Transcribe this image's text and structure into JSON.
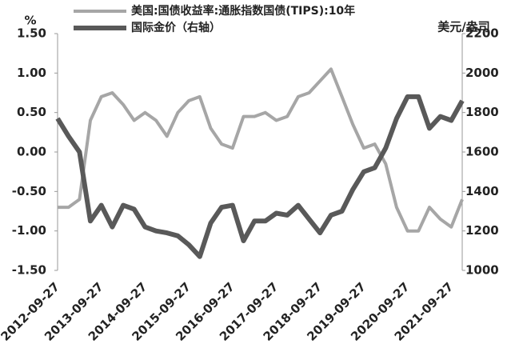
{
  "chart_data": {
    "type": "line",
    "y_unit": "%",
    "y2_unit": "美元/盎司",
    "categories": [
      "2012-09-27",
      null,
      null,
      null,
      "2013-09-27",
      null,
      null,
      null,
      "2014-09-27",
      null,
      null,
      null,
      "2015-09-27",
      null,
      null,
      null,
      "2016-09-27",
      null,
      null,
      null,
      "2017-09-27",
      null,
      null,
      null,
      "2018-09-27",
      null,
      null,
      null,
      "2019-09-27",
      null,
      null,
      null,
      "2020-09-27",
      null,
      null,
      null,
      "2021-09-27",
      null
    ],
    "series": [
      {
        "name": "美国:国债收益率:通胀指数国债(TIPS):10年",
        "color": "#a6a6a6",
        "values": [
          -0.7,
          -0.7,
          -0.6,
          0.4,
          0.7,
          0.75,
          0.6,
          0.4,
          0.5,
          0.4,
          0.2,
          0.5,
          0.65,
          0.7,
          0.3,
          0.1,
          0.05,
          0.45,
          0.45,
          0.5,
          0.4,
          0.45,
          0.7,
          0.75,
          0.9,
          1.05,
          0.7,
          0.35,
          0.05,
          0.1,
          -0.15,
          -0.7,
          -1.0,
          -1.0,
          -0.7,
          -0.85,
          -0.95,
          -0.6
        ]
      },
      {
        "name": "国际金价（右轴）",
        "color": "#595959",
        "axis": "y2",
        "values": [
          1770,
          1680,
          1600,
          1250,
          1330,
          1220,
          1330,
          1310,
          1220,
          1200,
          1190,
          1175,
          1130,
          1070,
          1240,
          1320,
          1330,
          1150,
          1250,
          1250,
          1290,
          1280,
          1330,
          1260,
          1190,
          1280,
          1300,
          1410,
          1500,
          1520,
          1620,
          1770,
          1880,
          1880,
          1720,
          1780,
          1760,
          1860
        ]
      }
    ],
    "ylim": [
      -1.5,
      1.5
    ],
    "yticks": [
      {
        "value": 1.5,
        "label": "1.50"
      },
      {
        "value": 1,
        "label": "1.00"
      },
      {
        "value": 0.5,
        "label": "0.50"
      },
      {
        "value": 0,
        "label": "0.00"
      },
      {
        "value": -0.5,
        "label": "-0.50"
      },
      {
        "value": -1,
        "label": "-1.00"
      },
      {
        "value": -1.5,
        "label": "-1.50"
      }
    ],
    "y2lim": [
      1000,
      2200
    ],
    "y2ticks": [
      1000,
      1200,
      1400,
      1600,
      1800,
      2000,
      2200
    ]
  }
}
